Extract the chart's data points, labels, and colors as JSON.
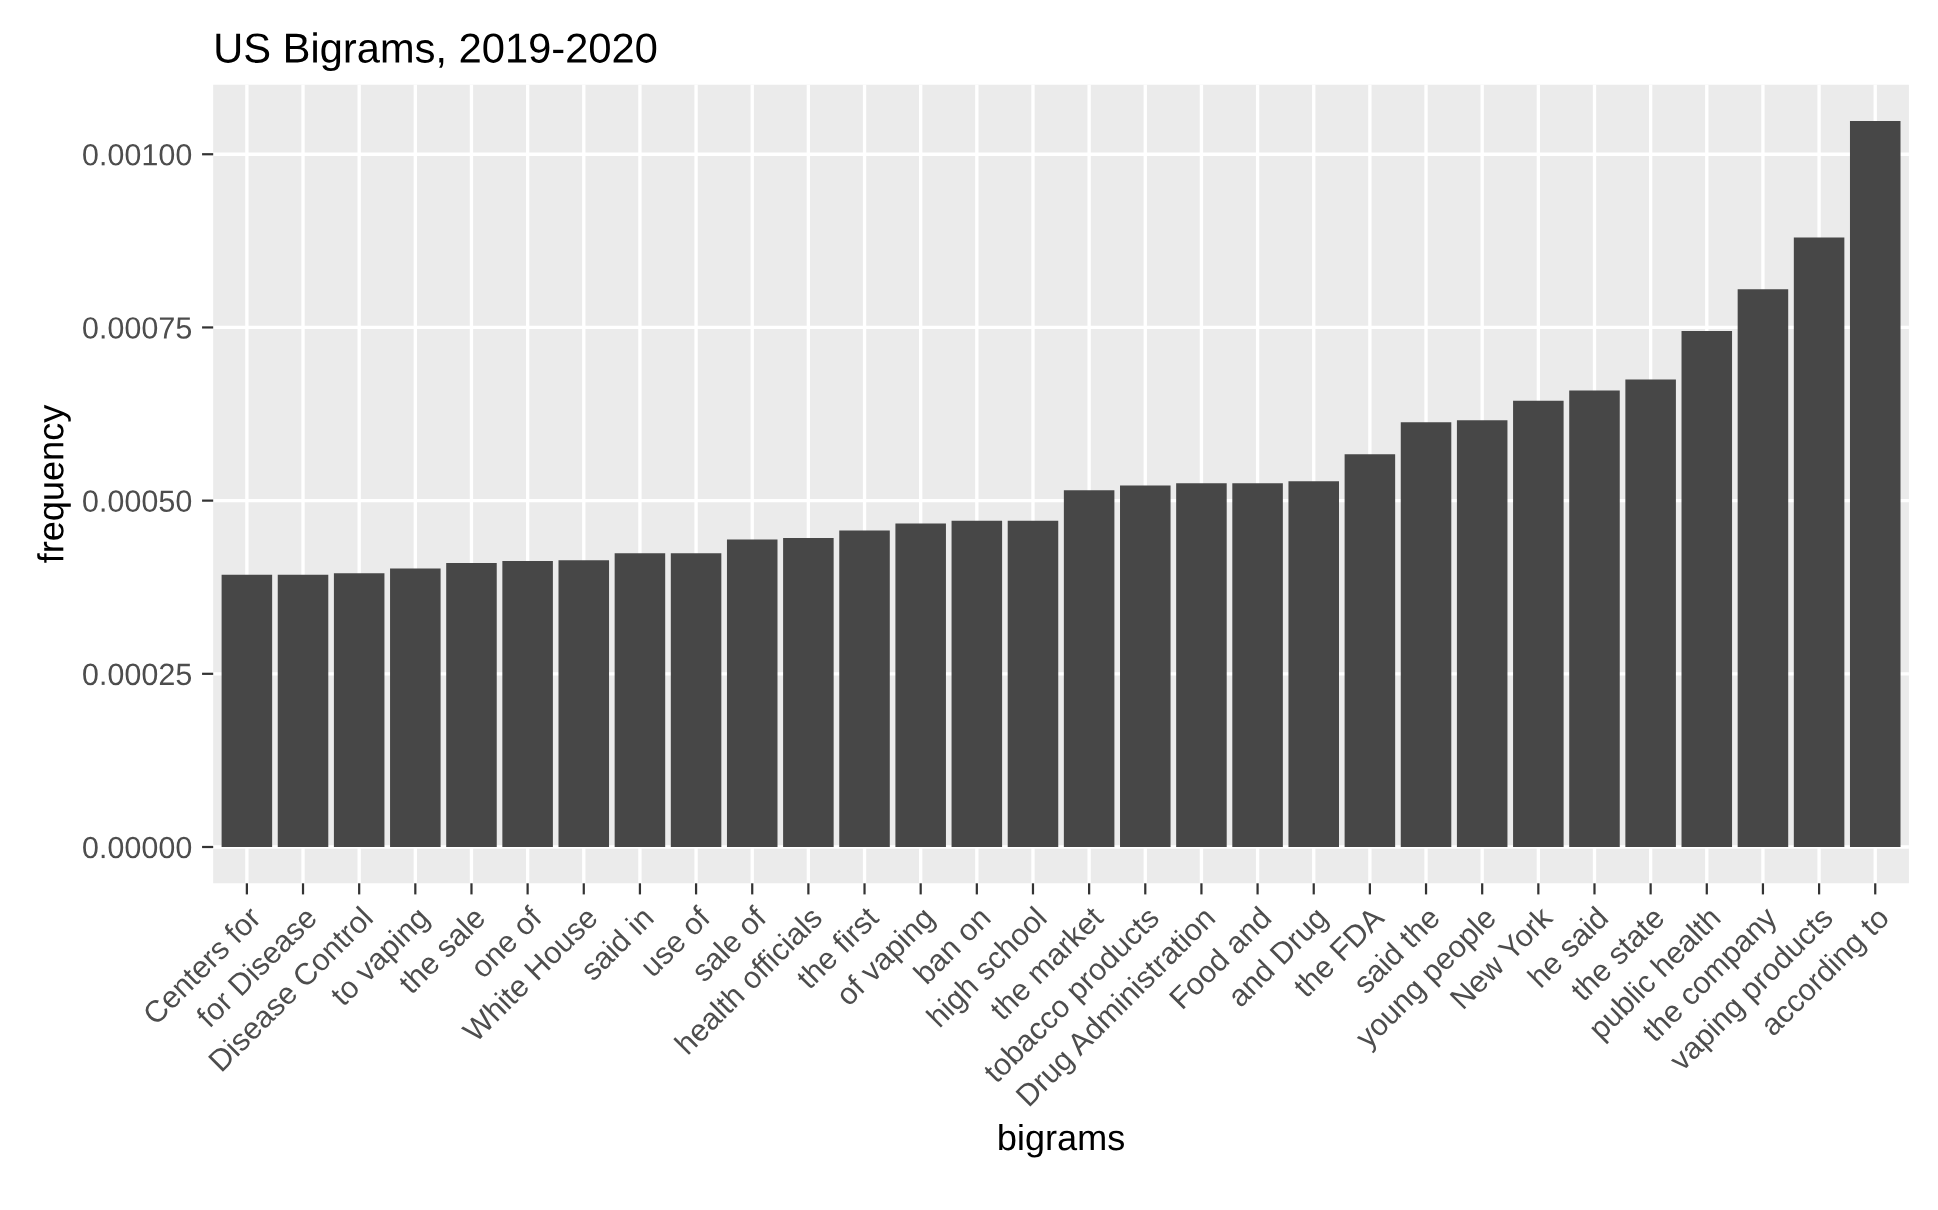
{
  "chart_data": {
    "type": "bar",
    "title": "US Bigrams, 2019-2020",
    "xlabel": "bigrams",
    "ylabel": "frequency",
    "categories": [
      "Centers for",
      "for Disease",
      "Disease Control",
      "to vaping",
      "the sale",
      "one of",
      "White House",
      "said in",
      "use of",
      "sale of",
      "health officials",
      "the first",
      "of vaping",
      "ban on",
      "high school",
      "the market",
      "tobacco products",
      "Drug Administration",
      "Food and",
      "and Drug",
      "the FDA",
      "said the",
      "young people",
      "New York",
      "he said",
      "the state",
      "public health",
      "the company",
      "vaping products",
      "according to"
    ],
    "values": [
      0.000393,
      0.000393,
      0.000395,
      0.000402,
      0.00041,
      0.000413,
      0.000414,
      0.000424,
      0.000424,
      0.000444,
      0.000446,
      0.000457,
      0.000467,
      0.000471,
      0.000471,
      0.000515,
      0.000522,
      0.000525,
      0.000525,
      0.000528,
      0.000567,
      0.000613,
      0.000616,
      0.000644,
      0.000659,
      0.000675,
      0.000745,
      0.000805,
      0.00088,
      0.001048
    ],
    "color": "#474747",
    "ylim": [
      -5.24e-05,
      0.0011004
    ],
    "yticks": [
      {
        "value": 0,
        "label": "0.00000"
      },
      {
        "value": 0.00025,
        "label": "0.00025"
      },
      {
        "value": 0.0005,
        "label": "0.00050"
      },
      {
        "value": 0.00075,
        "label": "0.00075"
      },
      {
        "value": 0.001,
        "label": "0.00100"
      }
    ],
    "grid": true
  }
}
